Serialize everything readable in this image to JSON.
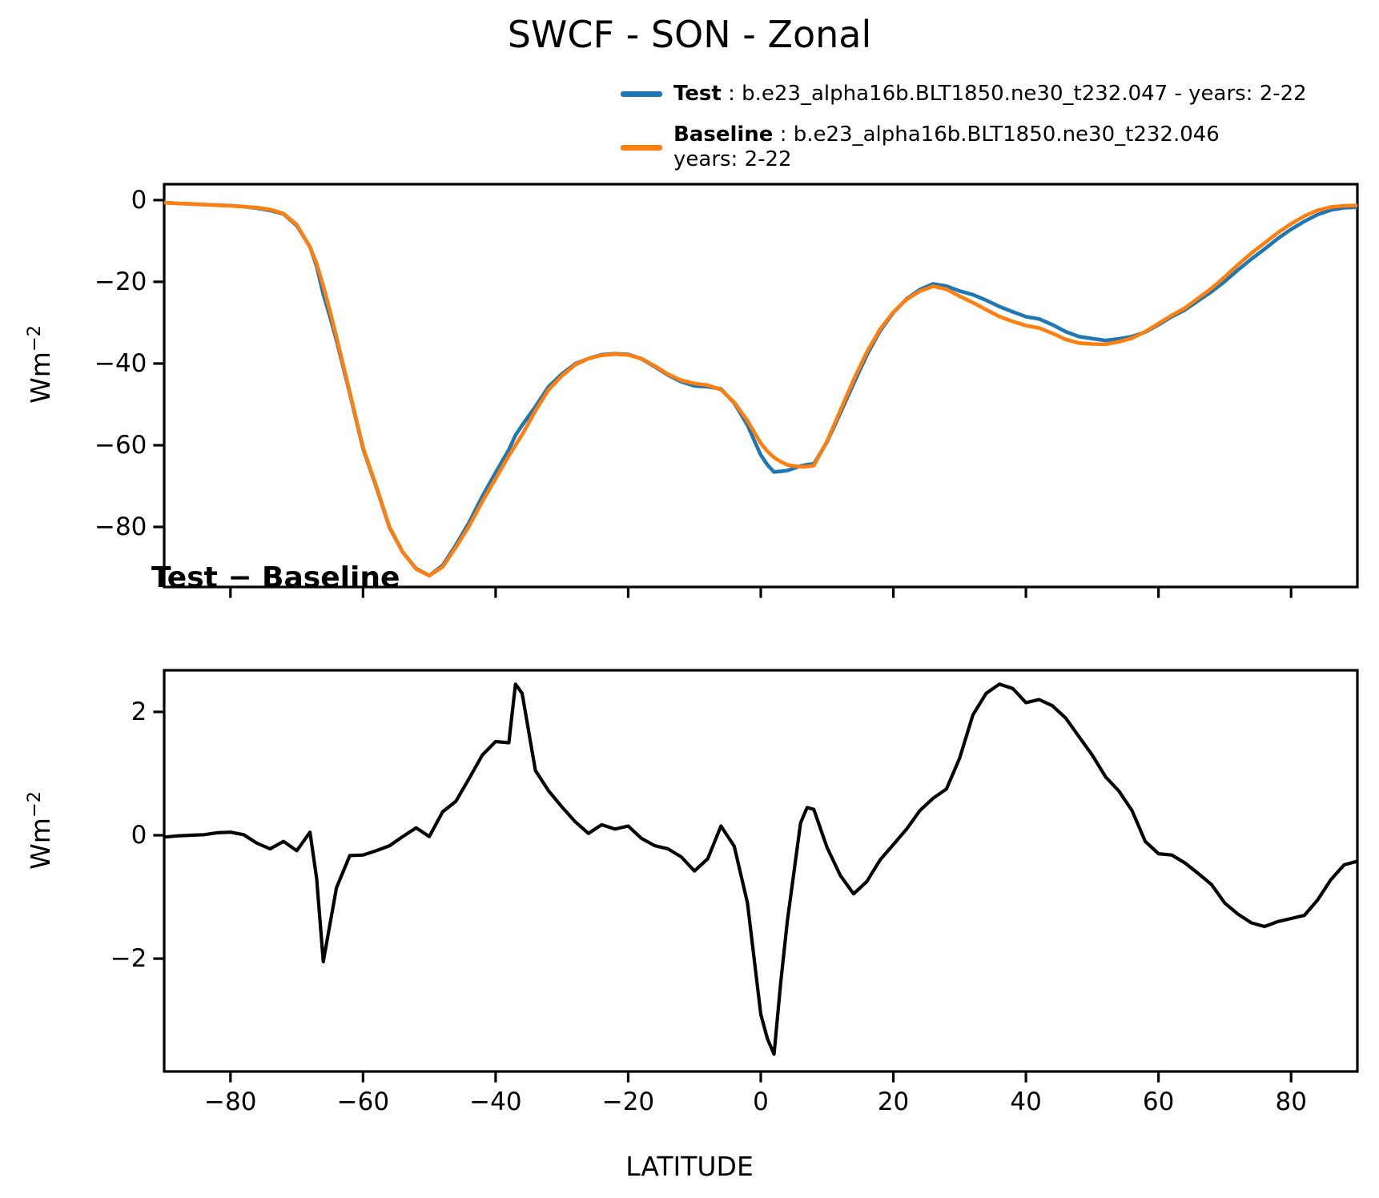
{
  "title": "SWCF - SON - Zonal",
  "legend": {
    "test_label": "Test",
    "test_desc": " : b.e23_alpha16b.BLT1850.ne30_t232.047 - years: 2-22",
    "baseline_label": "Baseline",
    "baseline_desc": " : b.e23_alpha16b.BLT1850.ne30_t232.046",
    "baseline_desc_line2": "years: 2-22"
  },
  "diff_title": "Test − Baseline",
  "xlabel": "LATITUDE",
  "ylabel_base": "Wm",
  "ylabel_exp": "−2",
  "colors": {
    "test": "#1f77b4",
    "baseline": "#ff7f0e",
    "diff": "#000000",
    "axis": "#000000"
  },
  "chart_data": [
    {
      "type": "line",
      "title": "SWCF - SON - Zonal",
      "xlabel": "LATITUDE",
      "ylabel": "Wm^-2",
      "xlim": [
        -90,
        90
      ],
      "ylim": [
        -94.7,
        3.9
      ],
      "grid": false,
      "legend_position": "upper right, above axes, no frame",
      "xticks": [
        -80,
        -60,
        -40,
        -20,
        0,
        20,
        40,
        60,
        80
      ],
      "xtick_labels_shown": false,
      "yticks": [
        0,
        -20,
        -40,
        -60,
        -80
      ],
      "ytick_labels": [
        "0",
        "−20",
        "−40",
        "−60",
        "−80"
      ],
      "x": [
        -90,
        -88,
        -86,
        -84,
        -82,
        -80,
        -78,
        -76,
        -74,
        -72,
        -70,
        -68,
        -67,
        -66,
        -65,
        -64,
        -62,
        -60,
        -58,
        -56,
        -54,
        -52,
        -50,
        -48,
        -46,
        -44,
        -42,
        -40,
        -38,
        -37,
        -36,
        -34,
        -32,
        -30,
        -28,
        -26,
        -24,
        -22,
        -20,
        -18,
        -16,
        -14,
        -12,
        -10,
        -8,
        -6,
        -4,
        -2,
        0,
        1,
        2,
        3,
        4,
        6,
        7,
        8,
        10,
        12,
        14,
        16,
        18,
        20,
        22,
        24,
        26,
        28,
        30,
        32,
        34,
        36,
        38,
        40,
        42,
        44,
        46,
        48,
        50,
        52,
        54,
        56,
        58,
        60,
        62,
        64,
        66,
        68,
        70,
        72,
        74,
        76,
        78,
        80,
        82,
        84,
        86,
        88,
        90
      ],
      "series": [
        {
          "name": "Test",
          "color": "#1f77b4",
          "values": [
            -0.63,
            -0.81,
            -0.95,
            -1.09,
            -1.21,
            -1.35,
            -1.59,
            -1.98,
            -2.52,
            -3.4,
            -6.25,
            -11.45,
            -16.2,
            -23.05,
            -28.45,
            -34.35,
            -47.33,
            -60.82,
            -70.25,
            -80.17,
            -86.22,
            -90.18,
            -91.92,
            -89.42,
            -84.45,
            -78.88,
            -72.5,
            -66.68,
            -61.1,
            -57.55,
            -55.1,
            -50.55,
            -45.68,
            -42.54,
            -40.08,
            -38.77,
            -37.83,
            -37.6,
            -37.75,
            -38.85,
            -40.77,
            -42.82,
            -44.45,
            -45.48,
            -45.68,
            -46.25,
            -49.68,
            -55.1,
            -62.4,
            -64.8,
            -66.55,
            -66.4,
            -66.2,
            -65.1,
            -64.75,
            -64.58,
            -59.2,
            -52.15,
            -44.95,
            -37.95,
            -32.0,
            -27.55,
            -24.2,
            -21.9,
            -20.5,
            -21.05,
            -22.25,
            -23.15,
            -24.5,
            -26.05,
            -27.32,
            -28.55,
            -29.1,
            -30.5,
            -32.2,
            -33.4,
            -33.9,
            -34.35,
            -33.98,
            -33.4,
            -32.3,
            -30.5,
            -28.52,
            -26.85,
            -24.62,
            -22.4,
            -19.9,
            -17.08,
            -14.42,
            -11.98,
            -9.4,
            -7.15,
            -5.2,
            -3.55,
            -2.42,
            -1.88,
            -1.72
          ]
        },
        {
          "name": "Baseline",
          "color": "#ff7f0e",
          "values": [
            -0.6,
            -0.8,
            -0.95,
            -1.1,
            -1.25,
            -1.4,
            -1.6,
            -1.85,
            -2.3,
            -3.3,
            -6.0,
            -11.5,
            -15.5,
            -21.0,
            -27.0,
            -33.5,
            -47.0,
            -60.5,
            -70.0,
            -80.0,
            -86.2,
            -90.3,
            -91.9,
            -89.8,
            -85.0,
            -79.8,
            -73.8,
            -68.2,
            -62.6,
            -60.0,
            -57.4,
            -51.6,
            -46.4,
            -43.0,
            -40.3,
            -38.8,
            -38.0,
            -37.7,
            -37.9,
            -38.8,
            -40.6,
            -42.6,
            -44.1,
            -44.9,
            -45.3,
            -46.4,
            -49.5,
            -54.0,
            -59.5,
            -61.5,
            -63.0,
            -64.0,
            -64.8,
            -65.3,
            -65.2,
            -65.0,
            -59.0,
            -51.5,
            -44.0,
            -37.2,
            -31.6,
            -27.4,
            -24.3,
            -22.3,
            -21.1,
            -21.8,
            -23.5,
            -25.1,
            -26.8,
            -28.5,
            -29.7,
            -30.7,
            -31.3,
            -32.6,
            -34.1,
            -35.0,
            -35.2,
            -35.3,
            -34.7,
            -33.8,
            -32.2,
            -30.2,
            -28.2,
            -26.4,
            -24.0,
            -21.6,
            -18.8,
            -15.8,
            -13.0,
            -10.5,
            -8.0,
            -5.8,
            -3.9,
            -2.5,
            -1.7,
            -1.4,
            -1.3
          ]
        }
      ]
    },
    {
      "type": "line",
      "title": "Test − Baseline",
      "xlabel": "LATITUDE",
      "ylabel": "Wm^-2",
      "xlim": [
        -90,
        90
      ],
      "ylim": [
        -3.83,
        2.675
      ],
      "grid": false,
      "xticks": [
        -80,
        -60,
        -40,
        -20,
        0,
        20,
        40,
        60,
        80
      ],
      "xtick_labels": [
        "−80",
        "−60",
        "−40",
        "−20",
        "0",
        "20",
        "40",
        "60",
        "80"
      ],
      "yticks": [
        2,
        0,
        -2
      ],
      "ytick_labels": [
        "2",
        "0",
        "−2"
      ],
      "x": [
        -90,
        -88,
        -86,
        -84,
        -82,
        -80,
        -78,
        -76,
        -74,
        -72,
        -70,
        -68,
        -67,
        -66,
        -65,
        -64,
        -62,
        -60,
        -58,
        -56,
        -54,
        -52,
        -50,
        -48,
        -46,
        -44,
        -42,
        -40,
        -38,
        -37,
        -36,
        -34,
        -32,
        -30,
        -28,
        -26,
        -24,
        -22,
        -20,
        -18,
        -16,
        -14,
        -12,
        -10,
        -8,
        -6,
        -4,
        -2,
        0,
        1,
        2,
        3,
        4,
        6,
        7,
        8,
        10,
        12,
        14,
        16,
        18,
        20,
        22,
        24,
        26,
        28,
        30,
        32,
        34,
        36,
        38,
        40,
        42,
        44,
        46,
        48,
        50,
        52,
        54,
        56,
        58,
        60,
        62,
        64,
        66,
        68,
        70,
        72,
        74,
        76,
        78,
        80,
        82,
        84,
        86,
        88,
        90
      ],
      "series": [
        {
          "name": "Test − Baseline",
          "color": "#000000",
          "values": [
            -0.03,
            -0.01,
            0.0,
            0.01,
            0.04,
            0.05,
            0.01,
            -0.13,
            -0.22,
            -0.1,
            -0.25,
            0.05,
            -0.7,
            -2.05,
            -1.45,
            -0.85,
            -0.33,
            -0.32,
            -0.25,
            -0.17,
            -0.02,
            0.12,
            -0.02,
            0.38,
            0.55,
            0.92,
            1.3,
            1.52,
            1.5,
            2.45,
            2.3,
            1.05,
            0.72,
            0.46,
            0.22,
            0.03,
            0.17,
            0.1,
            0.15,
            -0.05,
            -0.17,
            -0.22,
            -0.35,
            -0.58,
            -0.38,
            0.15,
            -0.18,
            -1.1,
            -2.9,
            -3.3,
            -3.55,
            -2.4,
            -1.4,
            0.2,
            0.45,
            0.42,
            -0.2,
            -0.65,
            -0.95,
            -0.75,
            -0.4,
            -0.15,
            0.1,
            0.4,
            0.6,
            0.75,
            1.25,
            1.95,
            2.3,
            2.45,
            2.38,
            2.15,
            2.2,
            2.1,
            1.9,
            1.6,
            1.3,
            0.95,
            0.72,
            0.4,
            -0.1,
            -0.3,
            -0.32,
            -0.45,
            -0.62,
            -0.8,
            -1.1,
            -1.28,
            -1.42,
            -1.48,
            -1.4,
            -1.35,
            -1.3,
            -1.05,
            -0.72,
            -0.48,
            -0.42
          ]
        }
      ]
    }
  ]
}
